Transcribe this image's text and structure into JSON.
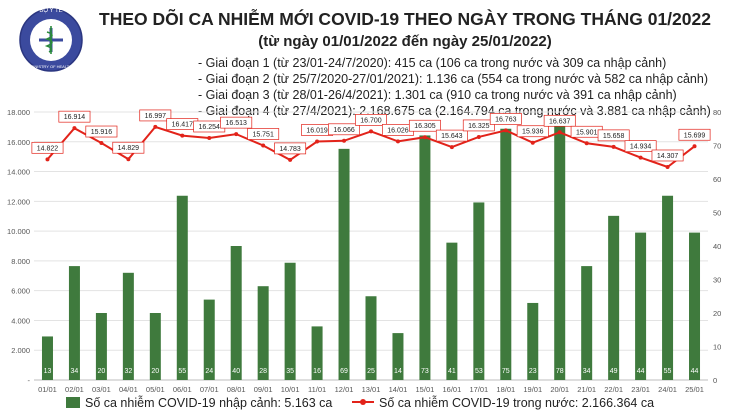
{
  "header": {
    "title": "THEO DÕI CA NHIỄM MỚI COVID-19 THEO NGÀY TRONG THÁNG 01/2022",
    "subtitle": "(từ ngày 01/01/2022 đến ngày 25/01/2022)"
  },
  "logo": {
    "top_text": "BỘ Y TẾ",
    "bottom_text": "MINISTRY OF HEALTH"
  },
  "notes": [
    "- Giai đoạn 1 (từ 23/01-24/7/2020): 415 ca (106 ca trong nước và 309 ca nhập cảnh)",
    "- Giai đoạn 2 (từ 25/7/2020-27/01/2021): 1.136 ca (554 ca trong nước và 582 ca nhập cảnh)",
    "- Giai đoạn 3 (từ 28/01-26/4/2021): 1.301 ca (910 ca trong nước và 391 ca nhập cảnh)",
    "- Giai đoạn 4 (từ 27/4/2021): 2.168.675 ca (2.164.794 ca trong nước và 3.881 ca nhập cảnh)"
  ],
  "legend": {
    "bars": "Số ca nhiễm COVID-19 nhập cảnh: 5.163 ca",
    "line": "Số ca nhiễm COVID-19 trong nước: 2.166.364 ca"
  },
  "colors": {
    "bar": "#3f7a3d",
    "line": "#e2231a",
    "grid": "#e3e3e3"
  },
  "chart_data": {
    "type": "bar",
    "categories": [
      "01/01",
      "02/01",
      "03/01",
      "04/01",
      "05/01",
      "06/01",
      "07/01",
      "08/01",
      "09/01",
      "10/01",
      "11/01",
      "12/01",
      "13/01",
      "14/01",
      "15/01",
      "16/01",
      "17/01",
      "18/01",
      "19/01",
      "20/01",
      "21/01",
      "22/01",
      "23/01",
      "24/01",
      "25/01"
    ],
    "series": [
      {
        "name": "Số ca nhiễm COVID-19 nhập cảnh: 5.163 ca",
        "kind": "bar",
        "axis": "right",
        "values": [
          13,
          34,
          20,
          32,
          20,
          55,
          24,
          40,
          28,
          35,
          16,
          69,
          25,
          14,
          73,
          41,
          53,
          75,
          23,
          78,
          34,
          49,
          44,
          55,
          44
        ],
        "labels": [
          "13",
          "34",
          "20",
          "32",
          "20",
          "55",
          "24",
          "40",
          "28",
          "35",
          "16",
          "69",
          "25",
          "14",
          "73",
          "41",
          "53",
          "75",
          "23",
          "78",
          "34",
          "49",
          "44",
          "55",
          "44"
        ]
      },
      {
        "name": "Số ca nhiễm COVID-19 trong nước: 2.166.364 ca",
        "kind": "line",
        "axis": "left",
        "values": [
          14822,
          16914,
          15916,
          14829,
          16997,
          16417,
          16254,
          16513,
          15751,
          14783,
          16019,
          16066,
          16700,
          16026,
          16305,
          15643,
          16325,
          16763,
          15936,
          16637,
          15901,
          15658,
          14934,
          14307,
          15699
        ],
        "labels": [
          "14.822",
          "16.914",
          "15.916",
          "14.829",
          "16.997",
          "16.417",
          "16.254",
          "16.513",
          "15.751",
          "14.783",
          "16.019",
          "16.066",
          "16.700",
          "16.026",
          "16.305",
          "15.643",
          "16.325",
          "16.763",
          "15.936",
          "16.637",
          "15.901",
          "15.658",
          "14.934",
          "14.307",
          "15.699"
        ]
      }
    ],
    "y_left": {
      "min": 0,
      "max": 18000,
      "ticks": [
        "-",
        "2.000",
        "4.000",
        "6.000",
        "8.000",
        "10.000",
        "12.000",
        "14.000",
        "16.000",
        "18.000"
      ]
    },
    "y_right": {
      "min": 0,
      "max": 80,
      "ticks": [
        "0",
        "10",
        "20",
        "30",
        "40",
        "50",
        "60",
        "70",
        "80"
      ]
    },
    "grid": true,
    "legend_position": "bottom"
  }
}
